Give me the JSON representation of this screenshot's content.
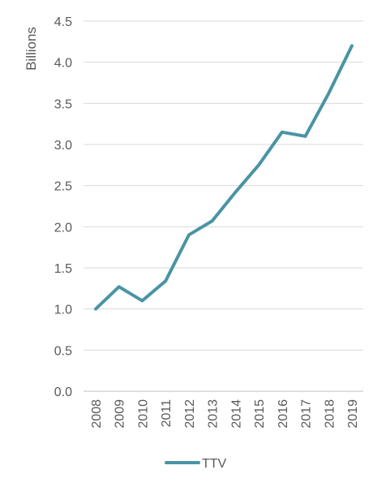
{
  "chart_data": {
    "type": "line",
    "title": "",
    "xlabel": "",
    "ylabel": "Billions",
    "categories": [
      "2008",
      "2009",
      "2010",
      "2011",
      "2012",
      "2013",
      "2014",
      "2015",
      "2016",
      "2017",
      "2018",
      "2019"
    ],
    "series": [
      {
        "name": "TTV",
        "values": [
          1.0,
          1.27,
          1.1,
          1.34,
          1.9,
          2.07,
          2.42,
          2.75,
          3.15,
          3.1,
          3.62,
          4.2
        ],
        "color": "#4a94a4"
      }
    ],
    "ylim": [
      0,
      4.5
    ],
    "yticks": [
      "0.0",
      "0.5",
      "1.0",
      "1.5",
      "2.0",
      "2.5",
      "3.0",
      "3.5",
      "4.0",
      "4.5"
    ],
    "grid": true,
    "legend": "bottom"
  }
}
